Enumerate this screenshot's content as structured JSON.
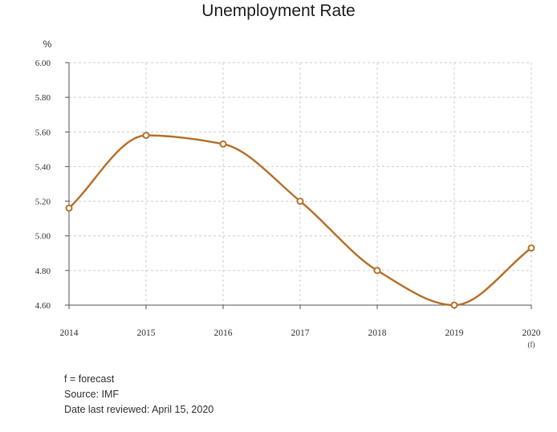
{
  "chart_data": {
    "type": "line",
    "title": "Unemployment Rate",
    "ylabel": "%",
    "xlabel": "",
    "categories": [
      "2014",
      "2015",
      "2016",
      "2017",
      "2018",
      "2019",
      "2020"
    ],
    "category_sublabels": [
      "",
      "",
      "",
      "",
      "",
      "",
      "(f)"
    ],
    "series": [
      {
        "values": [
          5.16,
          5.58,
          5.53,
          5.2,
          4.8,
          4.6,
          4.93
        ]
      }
    ],
    "ylim": [
      4.6,
      6.0
    ],
    "yticks": [
      "4.60",
      "4.80",
      "5.00",
      "5.20",
      "5.40",
      "5.60",
      "6.00"
    ],
    "yticks_all": [
      "4.60",
      "4.80",
      "5.00",
      "5.20",
      "5.40",
      "5.60",
      "5.80",
      "6.00"
    ],
    "grid": true,
    "line_color": "#b8742e"
  },
  "notes": {
    "forecast": "f = forecast",
    "source": "Source: IMF",
    "reviewed": "Date last reviewed: April 15, 2020"
  }
}
